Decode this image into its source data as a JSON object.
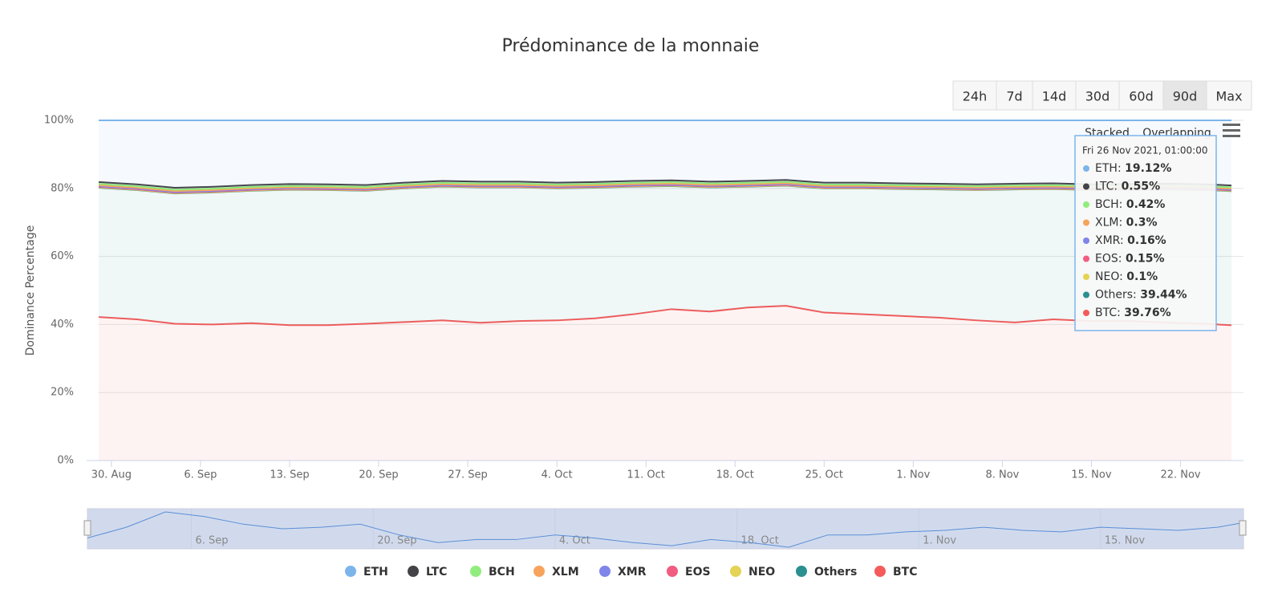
{
  "chart_data": {
    "type": "stacked-area",
    "title": "Prédominance de la monnaie",
    "y_axis_title": "Dominance Percentage",
    "range_buttons": [
      "24h",
      "7d",
      "14d",
      "30d",
      "60d",
      "90d",
      "Max"
    ],
    "selected_range": "90d",
    "stack_modes": [
      "Stacked",
      "Overlapping"
    ],
    "x": [
      "2021-08-29",
      "2021-09-01",
      "2021-09-04",
      "2021-09-07",
      "2021-09-10",
      "2021-09-13",
      "2021-09-16",
      "2021-09-19",
      "2021-09-22",
      "2021-09-25",
      "2021-09-28",
      "2021-10-01",
      "2021-10-04",
      "2021-10-07",
      "2021-10-10",
      "2021-10-13",
      "2021-10-16",
      "2021-10-19",
      "2021-10-22",
      "2021-10-25",
      "2021-10-28",
      "2021-10-31",
      "2021-11-03",
      "2021-11-06",
      "2021-11-09",
      "2021-11-12",
      "2021-11-15",
      "2021-11-18",
      "2021-11-21",
      "2021-11-24",
      "2021-11-26"
    ],
    "xticks": [
      {
        "value": "2021-08-30",
        "label": "30. Aug"
      },
      {
        "value": "2021-09-06",
        "label": "6. Sep"
      },
      {
        "value": "2021-09-13",
        "label": "13. Sep"
      },
      {
        "value": "2021-09-20",
        "label": "20. Sep"
      },
      {
        "value": "2021-09-27",
        "label": "27. Sep"
      },
      {
        "value": "2021-10-04",
        "label": "4. Oct"
      },
      {
        "value": "2021-10-11",
        "label": "11. Oct"
      },
      {
        "value": "2021-10-18",
        "label": "18. Oct"
      },
      {
        "value": "2021-10-25",
        "label": "25. Oct"
      },
      {
        "value": "2021-11-01",
        "label": "1. Nov"
      },
      {
        "value": "2021-11-08",
        "label": "8. Nov"
      },
      {
        "value": "2021-11-15",
        "label": "15. Nov"
      },
      {
        "value": "2021-11-22",
        "label": "22. Nov"
      }
    ],
    "navigator_xticks": [
      {
        "value": "2021-09-06",
        "label": "6. Sep"
      },
      {
        "value": "2021-09-20",
        "label": "20. Sep"
      },
      {
        "value": "2021-10-04",
        "label": "4. Oct"
      },
      {
        "value": "2021-10-18",
        "label": "18. Oct"
      },
      {
        "value": "2021-11-01",
        "label": "1. Nov"
      },
      {
        "value": "2021-11-15",
        "label": "15. Nov"
      }
    ],
    "ylim": [
      0,
      100
    ],
    "yticks": [
      {
        "value": 0,
        "label": "0%"
      },
      {
        "value": 20,
        "label": "20%"
      },
      {
        "value": 40,
        "label": "40%"
      },
      {
        "value": 60,
        "label": "60%"
      },
      {
        "value": 80,
        "label": "80%"
      },
      {
        "value": 100,
        "label": "100%"
      }
    ],
    "grid": true,
    "series": [
      {
        "name": "ETH",
        "color": "#7cb5ec",
        "values": [
          18.12,
          18.82,
          19.82,
          19.52,
          19.02,
          18.72,
          18.82,
          19.02,
          18.32,
          17.82,
          18.02,
          18.02,
          18.32,
          18.12,
          17.82,
          17.62,
          18.02,
          17.82,
          17.52,
          18.32,
          18.32,
          18.52,
          18.62,
          18.82,
          18.62,
          18.52,
          18.82,
          18.72,
          18.62,
          18.82,
          19.12
        ]
      },
      {
        "name": "LTC",
        "color": "#434348",
        "values": [
          0.55,
          0.55,
          0.55,
          0.55,
          0.55,
          0.55,
          0.55,
          0.55,
          0.55,
          0.55,
          0.55,
          0.55,
          0.55,
          0.55,
          0.55,
          0.55,
          0.55,
          0.55,
          0.55,
          0.55,
          0.55,
          0.55,
          0.55,
          0.55,
          0.55,
          0.55,
          0.55,
          0.55,
          0.55,
          0.55,
          0.55
        ]
      },
      {
        "name": "BCH",
        "color": "#90ed7d",
        "values": [
          0.42,
          0.42,
          0.42,
          0.42,
          0.42,
          0.42,
          0.42,
          0.42,
          0.42,
          0.42,
          0.42,
          0.42,
          0.42,
          0.42,
          0.42,
          0.42,
          0.42,
          0.42,
          0.42,
          0.42,
          0.42,
          0.42,
          0.42,
          0.42,
          0.42,
          0.42,
          0.42,
          0.42,
          0.42,
          0.42,
          0.42
        ]
      },
      {
        "name": "XLM",
        "color": "#f7a35c",
        "values": [
          0.3,
          0.3,
          0.3,
          0.3,
          0.3,
          0.3,
          0.3,
          0.3,
          0.3,
          0.3,
          0.3,
          0.3,
          0.3,
          0.3,
          0.3,
          0.3,
          0.3,
          0.3,
          0.3,
          0.3,
          0.3,
          0.3,
          0.3,
          0.3,
          0.3,
          0.3,
          0.3,
          0.3,
          0.3,
          0.3,
          0.3
        ]
      },
      {
        "name": "XMR",
        "color": "#8085e9",
        "values": [
          0.16,
          0.16,
          0.16,
          0.16,
          0.16,
          0.16,
          0.16,
          0.16,
          0.16,
          0.16,
          0.16,
          0.16,
          0.16,
          0.16,
          0.16,
          0.16,
          0.16,
          0.16,
          0.16,
          0.16,
          0.16,
          0.16,
          0.16,
          0.16,
          0.16,
          0.16,
          0.16,
          0.16,
          0.16,
          0.16,
          0.16
        ]
      },
      {
        "name": "EOS",
        "color": "#f15c80",
        "values": [
          0.15,
          0.15,
          0.15,
          0.15,
          0.15,
          0.15,
          0.15,
          0.15,
          0.15,
          0.15,
          0.15,
          0.15,
          0.15,
          0.15,
          0.15,
          0.15,
          0.15,
          0.15,
          0.15,
          0.15,
          0.15,
          0.15,
          0.15,
          0.15,
          0.15,
          0.15,
          0.15,
          0.15,
          0.15,
          0.15,
          0.15
        ]
      },
      {
        "name": "NEO",
        "color": "#e4d354",
        "values": [
          0.1,
          0.1,
          0.1,
          0.1,
          0.1,
          0.1,
          0.1,
          0.1,
          0.1,
          0.1,
          0.1,
          0.1,
          0.1,
          0.1,
          0.1,
          0.1,
          0.1,
          0.1,
          0.1,
          0.1,
          0.1,
          0.1,
          0.1,
          0.1,
          0.1,
          0.1,
          0.1,
          0.1,
          0.1,
          0.1,
          0.1
        ]
      },
      {
        "name": "Others",
        "color": "#2b908f",
        "values": [
          38.0,
          38.0,
          38.3,
          38.8,
          38.9,
          39.8,
          39.7,
          39.1,
          39.3,
          39.3,
          39.8,
          39.3,
          38.8,
          38.4,
          37.5,
          36.2,
          36.5,
          35.5,
          35.3,
          36.5,
          37.0,
          37.3,
          37.7,
          38.3,
          39.1,
          38.3,
          38.5,
          38.6,
          39.2,
          39.3,
          39.44
        ]
      },
      {
        "name": "BTC",
        "color": "#f45b5b",
        "values": [
          42.2,
          41.5,
          40.2,
          40.0,
          40.4,
          39.8,
          39.8,
          40.2,
          40.7,
          41.2,
          40.5,
          41.0,
          41.2,
          41.8,
          43.0,
          44.5,
          43.8,
          45.0,
          45.5,
          43.5,
          43.0,
          42.5,
          42.0,
          41.2,
          40.6,
          41.5,
          41.0,
          41.0,
          40.5,
          40.2,
          39.76
        ]
      }
    ],
    "tooltip": {
      "title": "Fri 26 Nov 2021, 01:00:00",
      "value_labels": [
        "19.12%",
        "0.55%",
        "0.42%",
        "0.3%",
        "0.16%",
        "0.15%",
        "0.1%",
        "39.44%",
        "39.76%"
      ]
    }
  }
}
